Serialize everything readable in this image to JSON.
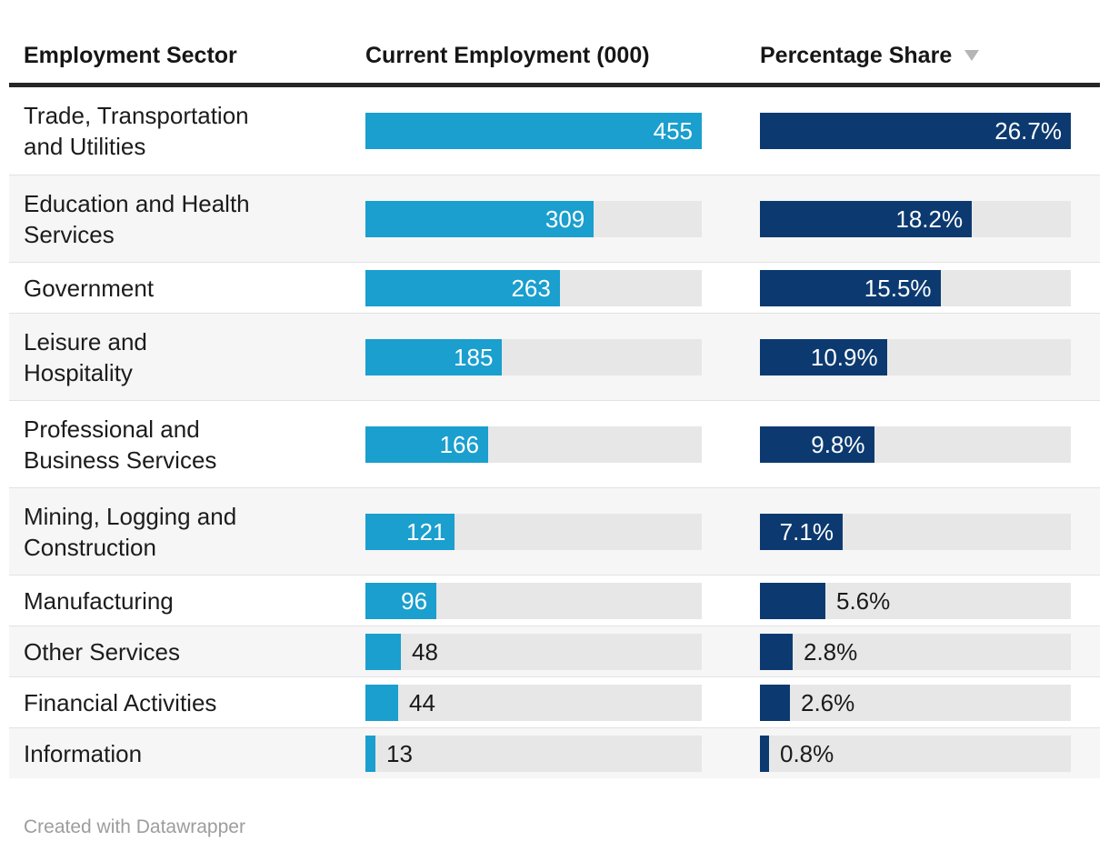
{
  "chart_data": {
    "type": "table",
    "columns": [
      {
        "label": "Employment Sector",
        "sortable": false
      },
      {
        "label": "Current Employment (000)",
        "sortable": false
      },
      {
        "label": "Percentage Share",
        "sortable": true,
        "sort_direction": "desc"
      }
    ],
    "employment_max": 455,
    "share_max": 26.7,
    "rows": [
      {
        "sector": "Trade, Transportation\nand Utilities",
        "employment": 455,
        "employment_label": "455",
        "share": 26.7,
        "share_label": "26.7%"
      },
      {
        "sector": "Education and Health\nServices",
        "employment": 309,
        "employment_label": "309",
        "share": 18.2,
        "share_label": "18.2%"
      },
      {
        "sector": "Government",
        "employment": 263,
        "employment_label": "263",
        "share": 15.5,
        "share_label": "15.5%"
      },
      {
        "sector": "Leisure and\nHospitality",
        "employment": 185,
        "employment_label": "185",
        "share": 10.9,
        "share_label": "10.9%"
      },
      {
        "sector": "Professional and\nBusiness Services",
        "employment": 166,
        "employment_label": "166",
        "share": 9.8,
        "share_label": "9.8%"
      },
      {
        "sector": "Mining, Logging and\nConstruction",
        "employment": 121,
        "employment_label": "121",
        "share": 7.1,
        "share_label": "7.1%"
      },
      {
        "sector": "Manufacturing",
        "employment": 96,
        "employment_label": "96",
        "share": 5.6,
        "share_label": "5.6%"
      },
      {
        "sector": "Other Services",
        "employment": 48,
        "employment_label": "48",
        "share": 2.8,
        "share_label": "2.8%"
      },
      {
        "sector": "Financial Activities",
        "employment": 44,
        "employment_label": "44",
        "share": 2.6,
        "share_label": "2.6%"
      },
      {
        "sector": "Information",
        "employment": 13,
        "employment_label": "13",
        "share": 0.8,
        "share_label": "0.8%"
      }
    ]
  },
  "footer": {
    "credit": "Created with Datawrapper"
  },
  "colors": {
    "employment_bar": "#1a9fce",
    "share_bar": "#0c3a70",
    "track": "#e7e7e7",
    "row_alt_bg": "#f6f6f6",
    "header_rule": "#262626",
    "row_divider": "#e2e2e2",
    "text": "#1a1a1a",
    "bar_label_light": "#ffffff",
    "footer_text": "#9d9d9d",
    "sort_icon": "#b5b5b5"
  }
}
